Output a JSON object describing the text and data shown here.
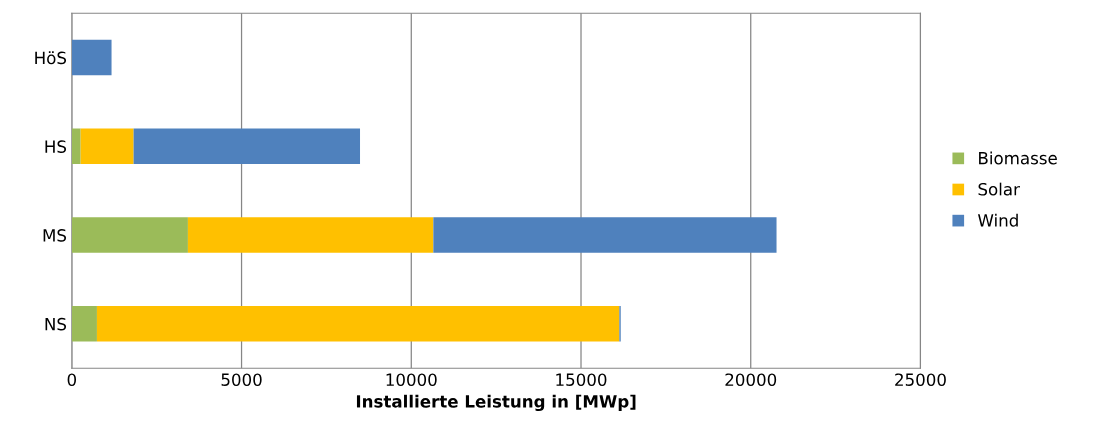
{
  "chart_data": {
    "type": "bar",
    "orientation": "horizontal",
    "stacked": true,
    "categories": [
      "HöS",
      "HS",
      "MS",
      "NS"
    ],
    "series": [
      {
        "name": "Biomasse",
        "color": "#9bbb59",
        "values": [
          0,
          260,
          3420,
          740
        ]
      },
      {
        "name": "Solar",
        "color": "#ffc000",
        "values": [
          0,
          1560,
          7230,
          15390
        ]
      },
      {
        "name": "Wind",
        "color": "#4f81bd",
        "values": [
          1170,
          6670,
          10110,
          40
        ]
      }
    ],
    "xlabel": "Installierte Leistung in [MWp]",
    "xlim": [
      0,
      25000
    ],
    "xticks": [
      0,
      5000,
      10000,
      15000,
      20000,
      25000
    ],
    "grid": "x",
    "legend": "right"
  }
}
